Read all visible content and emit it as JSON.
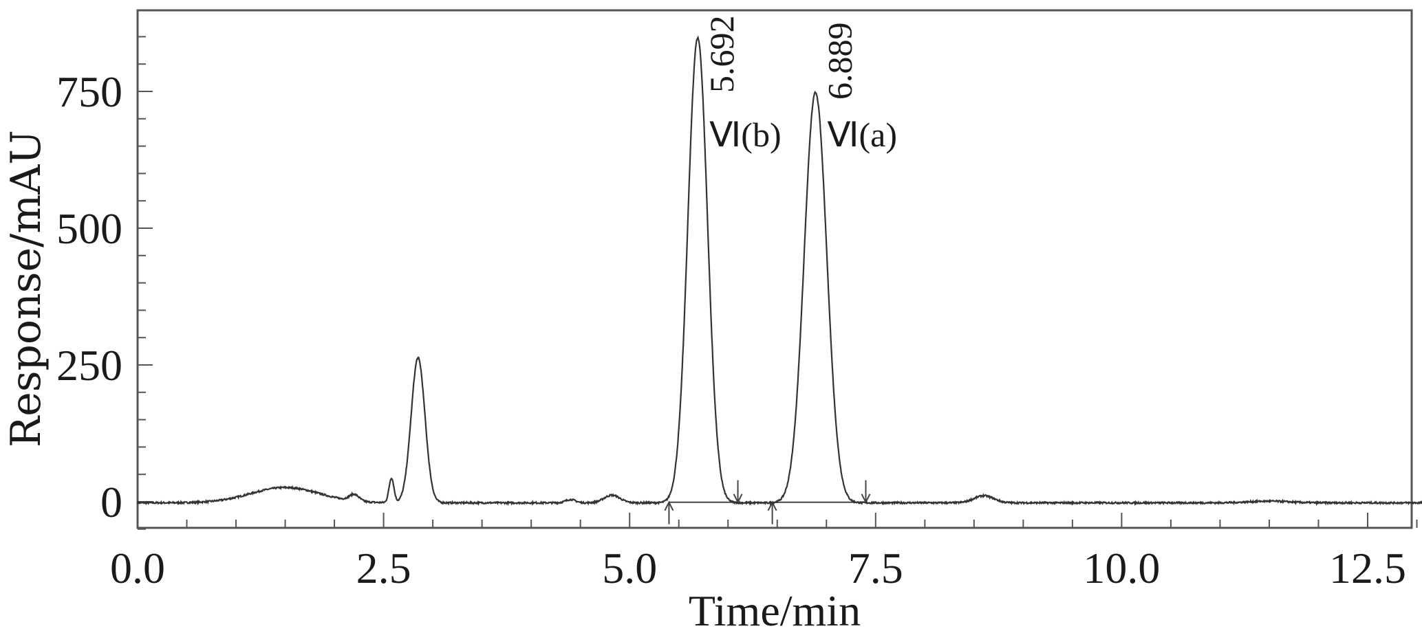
{
  "chart_data": {
    "type": "line",
    "title": "",
    "xlabel": "Time/min",
    "ylabel": "Response/mAU",
    "xlim": [
      0,
      15
    ],
    "ylim": [
      -50,
      900
    ],
    "x_ticks": [
      0.0,
      2.5,
      5.0,
      7.5,
      10.0,
      12.5
    ],
    "x_tick_labels": [
      "0.0",
      "2.5",
      "5.0",
      "7.5",
      "10.0",
      "12.5"
    ],
    "x_minor_step": 0.5,
    "y_ticks": [
      0,
      250,
      500,
      750
    ],
    "y_tick_labels": [
      "0",
      "250",
      "500",
      "750"
    ],
    "y_minor_step": 50,
    "grid": false,
    "line_color": "#333333",
    "peaks": [
      {
        "time": 1.5,
        "height": 28,
        "width": 0.35
      },
      {
        "time": 2.2,
        "height": 12,
        "width": 0.05
      },
      {
        "time": 2.58,
        "height": 45,
        "width": 0.025
      },
      {
        "time": 2.85,
        "height": 265,
        "width": 0.07
      },
      {
        "time": 4.4,
        "height": 6,
        "width": 0.05
      },
      {
        "time": 4.82,
        "height": 14,
        "width": 0.08
      },
      {
        "time": 5.692,
        "height": 850,
        "width": 0.1
      },
      {
        "time": 6.889,
        "height": 750,
        "width": 0.115
      },
      {
        "time": 8.6,
        "height": 13,
        "width": 0.1
      },
      {
        "time": 11.5,
        "height": 3,
        "width": 0.2
      }
    ],
    "integration_marks": [
      {
        "start": 5.4,
        "end": 6.1
      },
      {
        "start": 6.45,
        "end": 7.4
      }
    ],
    "annotations": [
      {
        "retention_time": "5.692",
        "label": "Ⅵ(b)",
        "x": 5.692,
        "y": 850
      },
      {
        "retention_time": "6.889",
        "label": "Ⅵ(a)",
        "x": 6.889,
        "y": 750
      }
    ]
  }
}
